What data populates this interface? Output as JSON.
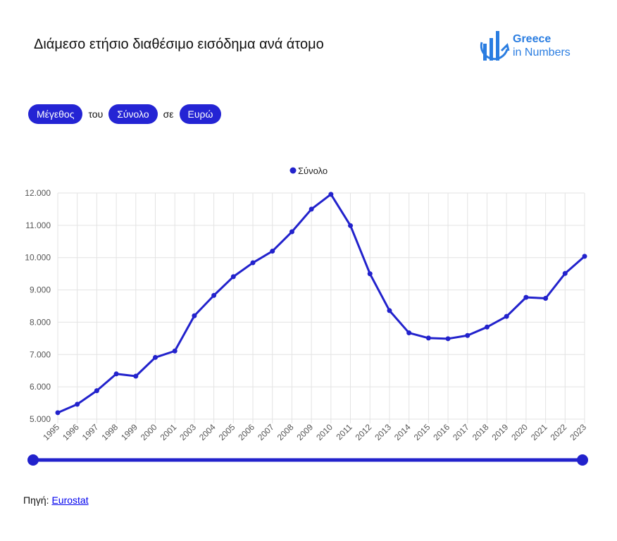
{
  "header": {
    "title": "Διάμεσο ετήσιο διαθέσιμο εισόδημα ανά άτομο"
  },
  "logo": {
    "line1": "Greece",
    "line2": "in Numbers",
    "color": "#2a7de1"
  },
  "filters": {
    "measure": "Μέγεθος",
    "connector1": "του",
    "group": "Σύνολο",
    "connector2": "σε",
    "unit": "Ευρώ"
  },
  "chart_data": {
    "type": "line",
    "legend": "top-center",
    "grid": true,
    "x": [
      "1995",
      "1996",
      "1997",
      "1998",
      "1999",
      "2000",
      "2001",
      "2003",
      "2004",
      "2005",
      "2006",
      "2007",
      "2008",
      "2009",
      "2010",
      "2011",
      "2012",
      "2013",
      "2014",
      "2015",
      "2016",
      "2017",
      "2018",
      "2019",
      "2020",
      "2021",
      "2022",
      "2023"
    ],
    "series": [
      {
        "name": "Σύνολο",
        "color": "#2222cc",
        "values": [
          5200,
          5460,
          5880,
          6400,
          6330,
          6910,
          7110,
          8200,
          8830,
          9410,
          9840,
          10200,
          10800,
          11500,
          11960,
          10990,
          9500,
          8360,
          7670,
          7510,
          7490,
          7590,
          7850,
          8180,
          8770,
          8740,
          9510,
          10040
        ]
      }
    ],
    "ylim": [
      5000,
      12000
    ],
    "yticks": [
      5000,
      6000,
      7000,
      8000,
      9000,
      10000,
      11000,
      12000
    ],
    "ytick_labels": [
      "5.000",
      "6.000",
      "7.000",
      "8.000",
      "9.000",
      "10.000",
      "11.000",
      "12.000"
    ]
  },
  "range_slider": {
    "start": "1995",
    "end": "2023",
    "color": "#2222cc"
  },
  "source": {
    "label": "Πηγή:",
    "link_text": "Eurostat"
  }
}
